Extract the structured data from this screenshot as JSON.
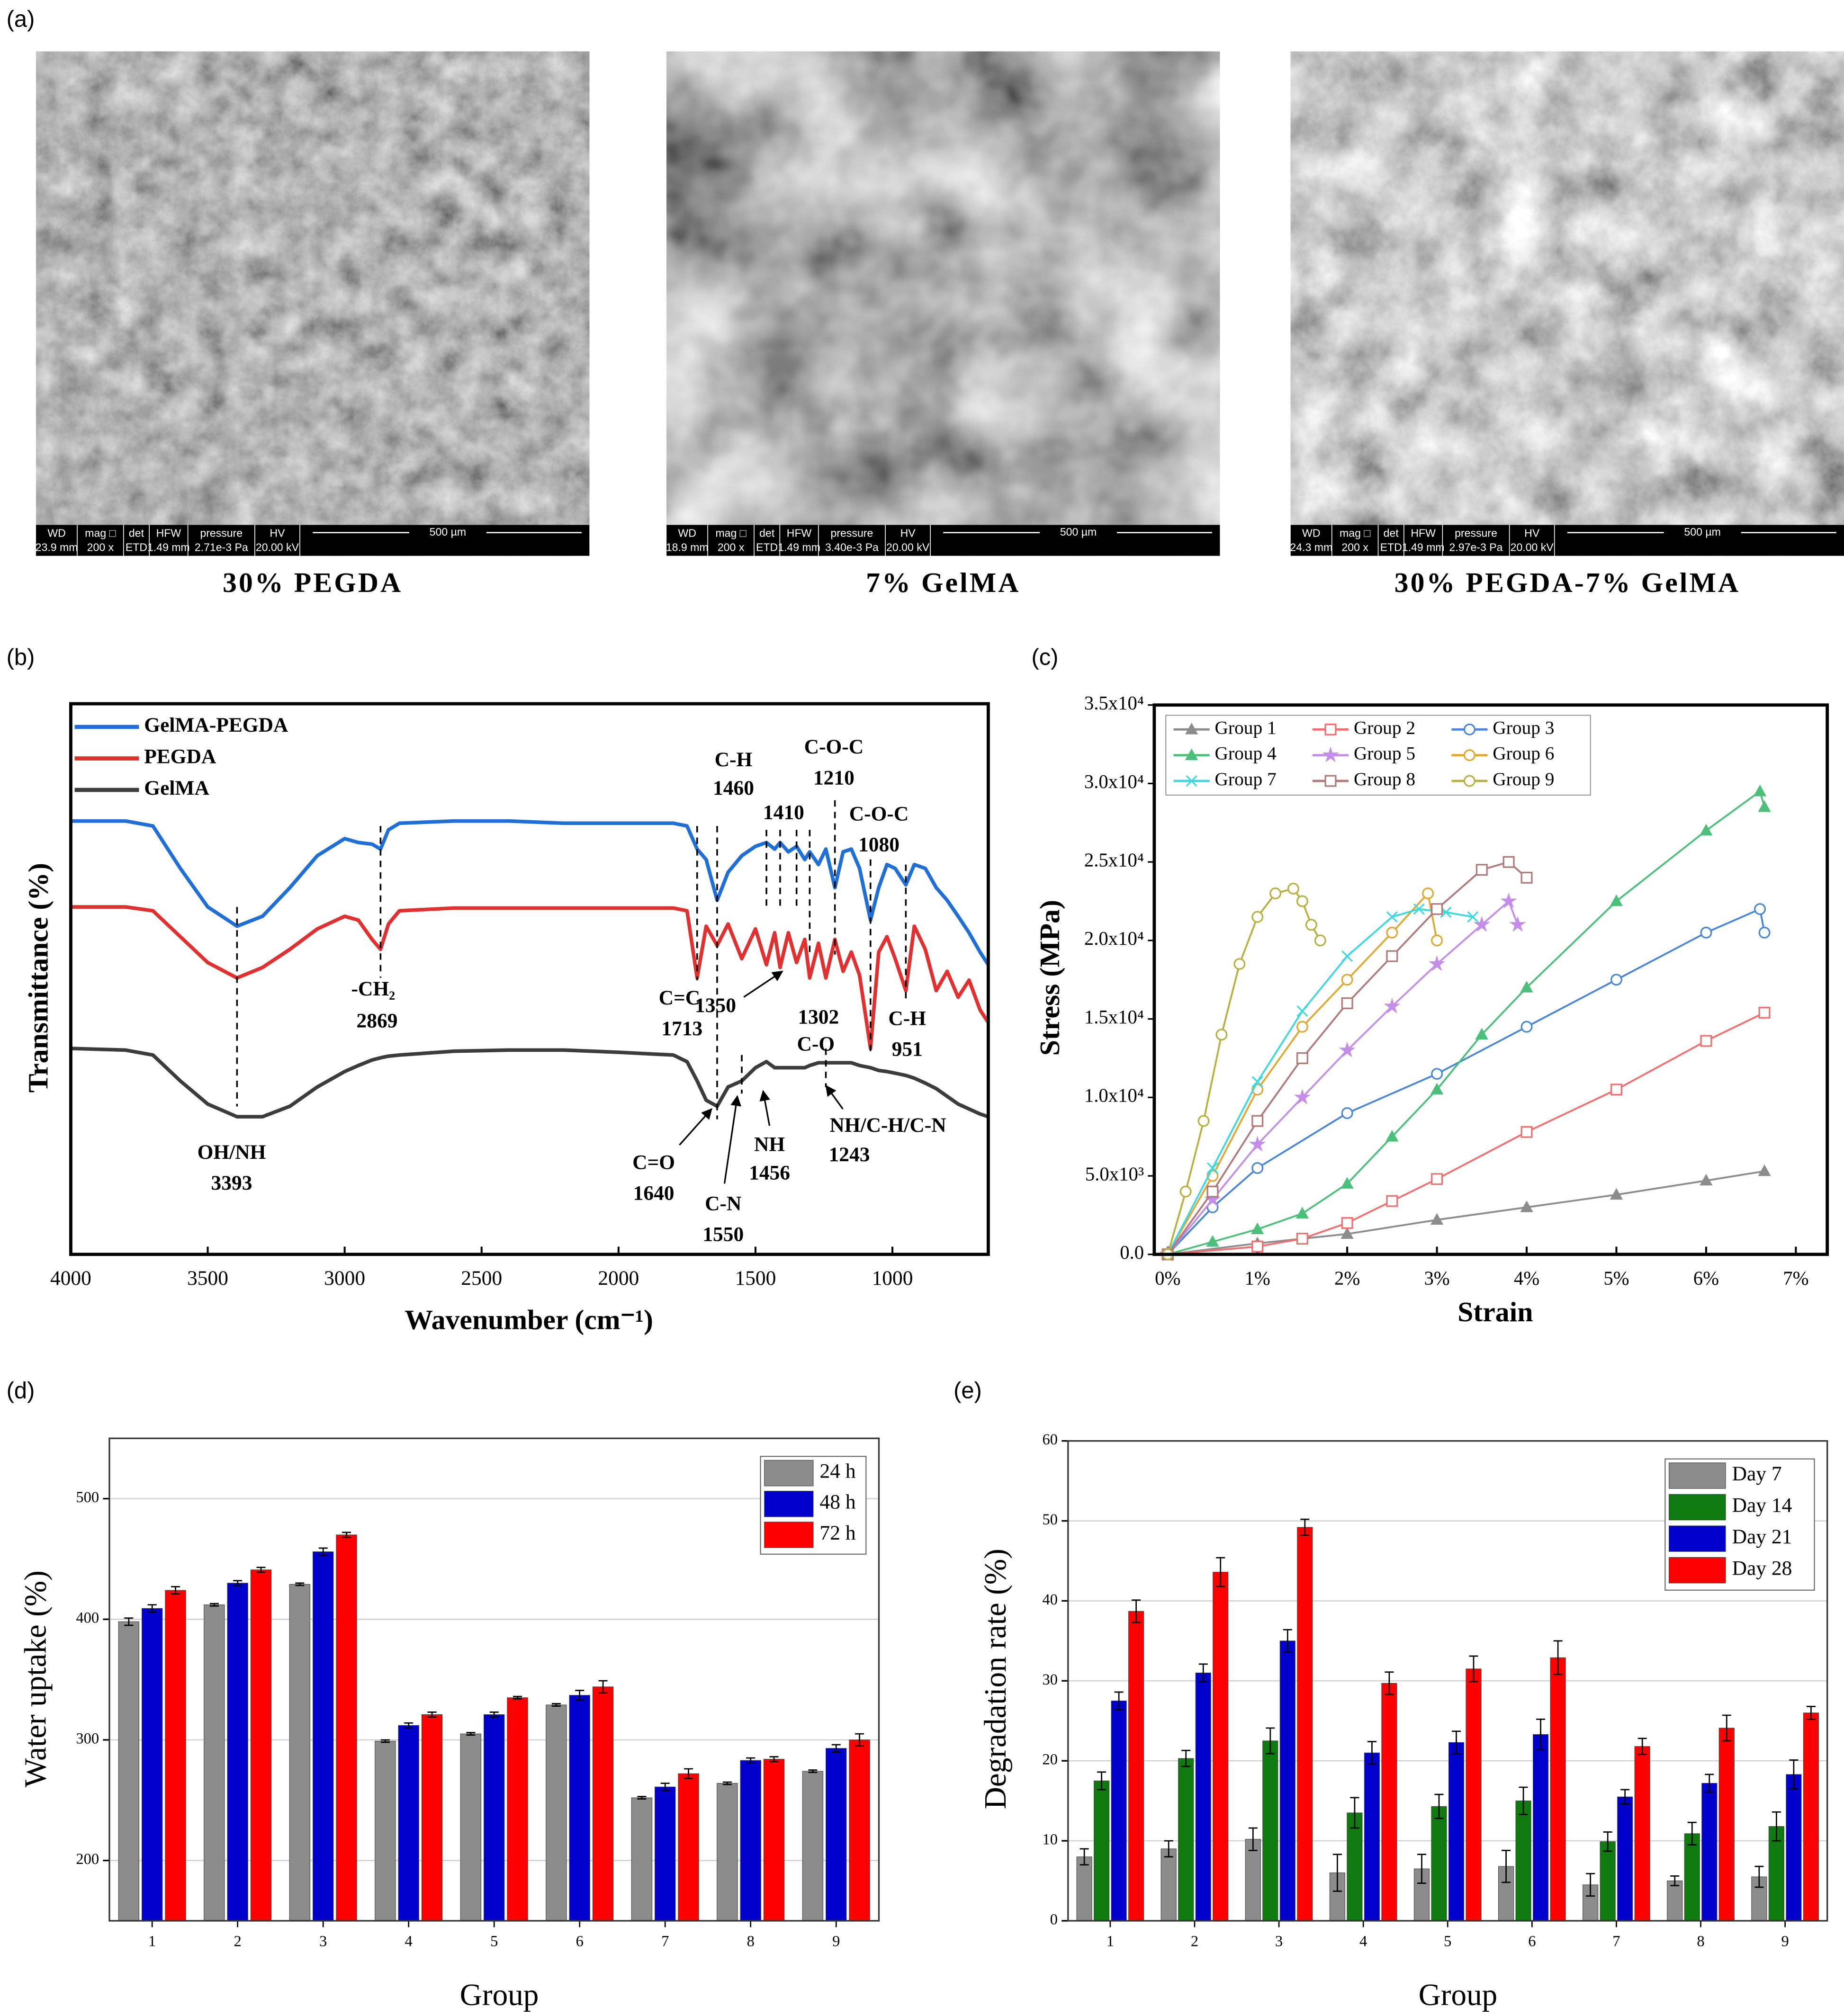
{
  "panel_labels": [
    "(a)",
    "(b)",
    "(c)",
    "(d)",
    "(e)"
  ],
  "sem_info_headers": [
    "WD",
    "mag □",
    "det",
    "HFW",
    "pressure",
    "HV"
  ],
  "sem_images": [
    {
      "caption": "30% PEGDA",
      "info_values": [
        "23.9 mm",
        "200 x",
        "ETD",
        "1.49 mm",
        "2.71e-3 Pa",
        "20.00 kV"
      ],
      "scale_bar": "500 µm"
    },
    {
      "caption": "7% GelMA",
      "info_values": [
        "18.9 mm",
        "200 x",
        "ETD",
        "1.49 mm",
        "3.40e-3 Pa",
        "20.00 kV"
      ],
      "scale_bar": "500 µm"
    },
    {
      "caption": "30% PEGDA-7% GelMA",
      "info_values": [
        "24.3 mm",
        "200 x",
        "ETD",
        "1.49 mm",
        "2.97e-3 Pa",
        "20.00 kV"
      ],
      "scale_bar": "500 µm"
    }
  ],
  "chart_data": [
    {
      "type": "line",
      "xlabel": "Wavenumber (cm⁻¹)",
      "ylabel": "Transmittance (%)",
      "xlim": [
        4000,
        650
      ],
      "xticks": [
        4000,
        3500,
        3000,
        2500,
        2000,
        1500,
        1000
      ],
      "ylim": [
        0,
        100
      ],
      "legend": "upper left",
      "x": [
        4000,
        3800,
        3700,
        3600,
        3500,
        3393,
        3300,
        3200,
        3100,
        3000,
        2950,
        2900,
        2869,
        2840,
        2800,
        2600,
        2400,
        2200,
        2000,
        1800,
        1750,
        1713,
        1680,
        1640,
        1600,
        1550,
        1500,
        1460,
        1430,
        1410,
        1380,
        1350,
        1320,
        1302,
        1270,
        1243,
        1210,
        1180,
        1150,
        1120,
        1080,
        1050,
        1020,
        990,
        951,
        920,
        880,
        840,
        800,
        760,
        720,
        680,
        650
      ],
      "series": [
        {
          "name": "GelMA-PEGDA",
          "color": "#1f6fd6",
          "values": [
            78.7,
            78.7,
            77.8,
            70.1,
            63.1,
            59.6,
            61.4,
            66.6,
            72.4,
            75.5,
            74.8,
            74.5,
            73.6,
            77.1,
            78.3,
            78.7,
            78.7,
            78.3,
            78.3,
            78.3,
            77.8,
            73.6,
            71.7,
            64.3,
            69.4,
            72.4,
            74.1,
            74.8,
            73.6,
            74.8,
            73.1,
            74.1,
            71.7,
            73.1,
            70.8,
            73.6,
            66.6,
            73.1,
            73.6,
            70.1,
            60.7,
            66.6,
            70.8,
            70.1,
            67.1,
            70.8,
            70.1,
            66.6,
            64.3,
            61.4,
            58.4,
            54.9,
            52.6
          ]
        },
        {
          "name": "PEGDA",
          "color": "#e03030",
          "values": [
            63.1,
            63.1,
            62.4,
            57.7,
            53.0,
            50.2,
            52.1,
            55.4,
            59.1,
            61.4,
            60.7,
            57.2,
            55.4,
            60.0,
            62.4,
            62.9,
            62.9,
            62.9,
            62.9,
            62.9,
            62.4,
            50.2,
            59.6,
            56.1,
            60.0,
            53.7,
            59.1,
            52.6,
            58.4,
            52.1,
            58.4,
            53.0,
            57.2,
            50.2,
            56.5,
            50.2,
            57.2,
            51.4,
            54.9,
            50.7,
            37.4,
            54.9,
            57.7,
            53.7,
            47.9,
            59.6,
            55.4,
            47.9,
            51.4,
            46.7,
            49.8,
            44.4,
            42.1
          ]
        },
        {
          "name": "GelMA",
          "color": "#3c3c3c",
          "values": [
            37.4,
            37.1,
            36.2,
            31.5,
            27.3,
            25.0,
            25.0,
            26.9,
            30.4,
            33.2,
            34.3,
            35.3,
            35.7,
            36.0,
            36.2,
            36.9,
            37.1,
            37.1,
            36.7,
            36.2,
            35.0,
            31.5,
            28.0,
            26.9,
            30.4,
            31.5,
            33.9,
            35.0,
            33.9,
            33.9,
            33.9,
            33.9,
            33.9,
            34.3,
            34.8,
            34.8,
            34.8,
            34.8,
            34.8,
            34.3,
            33.9,
            33.4,
            33.2,
            32.9,
            32.5,
            32.0,
            31.1,
            30.1,
            28.7,
            27.3,
            26.4,
            25.5,
            25.0
          ]
        }
      ],
      "annotations": [
        {
          "label": "OH/NH",
          "value": 3393
        },
        {
          "label": "-CH₂",
          "value": 2869
        },
        {
          "label": "C=C",
          "value": 1713
        },
        {
          "label": "C=O",
          "value": 1640
        },
        {
          "label": "C-N",
          "value": 1550
        },
        {
          "label": "NH",
          "value": 1456
        },
        {
          "label": "C-H",
          "value": 1460
        },
        {
          "value": 1410
        },
        {
          "value": 1350
        },
        {
          "label": "C-O",
          "value": 1302
        },
        {
          "label": "NH/C-H/C-N",
          "value": 1243
        },
        {
          "label": "C-O-C",
          "value": 1210
        },
        {
          "label": "C-O-C",
          "value": 1080
        },
        {
          "label": "C-H",
          "value": 951
        }
      ]
    },
    {
      "type": "line",
      "xlabel": "Strain",
      "ylabel": "Stress (MPa)",
      "xlim": [
        -0.15,
        7.35
      ],
      "xticks": [
        {
          "value": 0,
          "label": "0%"
        },
        {
          "value": 1,
          "label": "1%"
        },
        {
          "value": 2,
          "label": "2%"
        },
        {
          "value": 3,
          "label": "3%"
        },
        {
          "value": 4,
          "label": "4%"
        },
        {
          "value": 5,
          "label": "5%"
        },
        {
          "value": 6,
          "label": "6%"
        },
        {
          "value": 7,
          "label": "7%"
        }
      ],
      "ylim": [
        0,
        35000
      ],
      "yticks": [
        {
          "value": 0,
          "label": "0.0"
        },
        {
          "value": 5000,
          "label": "5.0x10³"
        },
        {
          "value": 10000,
          "label": "1.0x10⁴"
        },
        {
          "value": 15000,
          "label": "1.5x10⁴"
        },
        {
          "value": 20000,
          "label": "2.0x10⁴"
        },
        {
          "value": 25000,
          "label": "2.5x10⁴"
        },
        {
          "value": 30000,
          "label": "3.0x10⁴"
        },
        {
          "value": 35000,
          "label": "3.5x10⁴"
        }
      ],
      "legend": "upper left",
      "series": [
        {
          "name": "Group 1",
          "color": "#8c8c8c",
          "marker": "triangle",
          "x": [
            0,
            1,
            2,
            3,
            4,
            5,
            6,
            6.65
          ],
          "values": [
            0,
            700,
            1300,
            2200,
            3000,
            3800,
            4700,
            5300
          ]
        },
        {
          "name": "Group 2",
          "color": "#f07070",
          "marker": "square",
          "x": [
            0,
            1,
            1.5,
            2,
            2.5,
            3,
            4,
            5,
            6,
            6.65
          ],
          "values": [
            0,
            500,
            1000,
            2000,
            3400,
            4800,
            7800,
            10500,
            13600,
            15400
          ]
        },
        {
          "name": "Group 3",
          "color": "#4a86d8",
          "marker": "circle",
          "x": [
            0,
            0.5,
            1,
            2,
            3,
            4,
            5,
            6,
            6.6,
            6.65
          ],
          "values": [
            0,
            3000,
            5500,
            9000,
            11500,
            14500,
            17500,
            20500,
            22000,
            20500
          ]
        },
        {
          "name": "Group 4",
          "color": "#4cc07a",
          "marker": "triangle",
          "x": [
            0,
            0.5,
            1,
            1.5,
            2,
            2.5,
            3,
            3.5,
            4,
            5,
            6,
            6.6,
            6.65
          ],
          "values": [
            0,
            800,
            1600,
            2600,
            4500,
            7500,
            10500,
            14000,
            17000,
            22500,
            27000,
            29500,
            28500
          ]
        },
        {
          "name": "Group 5",
          "color": "#c38de8",
          "marker": "star",
          "x": [
            0,
            0.5,
            1,
            1.5,
            2,
            2.5,
            3,
            3.5,
            3.8,
            3.9
          ],
          "values": [
            0,
            3500,
            7000,
            10000,
            13000,
            15800,
            18500,
            21000,
            22500,
            21000
          ]
        },
        {
          "name": "Group 6",
          "color": "#e0a830",
          "marker": "circle",
          "x": [
            0,
            0.5,
            1,
            1.5,
            2,
            2.5,
            2.9,
            3.0
          ],
          "values": [
            0,
            5000,
            10500,
            14500,
            17500,
            20500,
            23000,
            20000
          ]
        },
        {
          "name": "Group 7",
          "color": "#40d8e0",
          "marker": "x",
          "x": [
            0,
            0.5,
            1,
            1.5,
            2,
            2.5,
            2.8,
            3.1,
            3.4
          ],
          "values": [
            0,
            5500,
            11000,
            15500,
            19000,
            21500,
            22000,
            21800,
            21500
          ]
        },
        {
          "name": "Group 8",
          "color": "#b07a7a",
          "marker": "square",
          "x": [
            0,
            0.5,
            1,
            1.5,
            2,
            2.5,
            3,
            3.5,
            3.8,
            4.0
          ],
          "values": [
            0,
            4000,
            8500,
            12500,
            16000,
            19000,
            22000,
            24500,
            25000,
            24000
          ]
        },
        {
          "name": "Group 9",
          "color": "#b8b040",
          "marker": "circle",
          "x": [
            0,
            0.2,
            0.4,
            0.6,
            0.8,
            1.0,
            1.2,
            1.4,
            1.5,
            1.6,
            1.7
          ],
          "values": [
            0,
            4000,
            8500,
            14000,
            18500,
            21500,
            23000,
            23300,
            22500,
            21000,
            20000
          ]
        }
      ]
    },
    {
      "type": "bar",
      "xlabel": "Group",
      "ylabel": "Water uptake (%)",
      "categories": [
        "1",
        "2",
        "3",
        "4",
        "5",
        "6",
        "7",
        "8",
        "9"
      ],
      "ylim": [
        150,
        550
      ],
      "yticks": [
        200,
        300,
        400,
        500
      ],
      "grid": true,
      "legend": "upper right",
      "series": [
        {
          "name": "24 h",
          "color": "#8c8c8c",
          "values": [
            398,
            412,
            429,
            299,
            305,
            329,
            252,
            264,
            274
          ],
          "errors": [
            3,
            1,
            1,
            1,
            1,
            1,
            1,
            1,
            1
          ]
        },
        {
          "name": "48 h",
          "color": "#0000cc",
          "values": [
            409,
            430,
            456,
            312,
            321,
            337,
            261,
            283,
            293
          ],
          "errors": [
            3,
            2,
            3,
            2,
            2,
            4,
            3,
            2,
            3
          ]
        },
        {
          "name": "72 h",
          "color": "#ff0000",
          "values": [
            424,
            441,
            470,
            321,
            335,
            344,
            272,
            284,
            300
          ],
          "errors": [
            3,
            2,
            2,
            2,
            1,
            5,
            4,
            2,
            5
          ]
        }
      ]
    },
    {
      "type": "bar",
      "xlabel": "Group",
      "ylabel": "Degradation rate (%)",
      "categories": [
        "1",
        "2",
        "3",
        "4",
        "5",
        "6",
        "7",
        "8",
        "9"
      ],
      "ylim": [
        0,
        60
      ],
      "yticks": [
        0,
        10,
        20,
        30,
        40,
        50,
        60
      ],
      "grid": true,
      "legend": "upper right",
      "series": [
        {
          "name": "Day 7",
          "color": "#8c8c8c",
          "values": [
            8,
            9,
            10.2,
            6,
            6.5,
            6.8,
            4.5,
            5,
            5.5
          ],
          "errors": [
            1,
            1,
            1.4,
            2.3,
            1.8,
            2,
            1.4,
            0.6,
            1.3
          ]
        },
        {
          "name": "Day 14",
          "color": "#0f7a0f",
          "values": [
            17.5,
            20.3,
            22.5,
            13.5,
            14.3,
            15,
            9.9,
            10.9,
            11.8
          ],
          "errors": [
            1.1,
            1,
            1.6,
            1.9,
            1.5,
            1.7,
            1.2,
            1.4,
            1.8
          ]
        },
        {
          "name": "Day 21",
          "color": "#0000cc",
          "values": [
            27.5,
            31,
            35,
            21,
            22.3,
            23.3,
            15.5,
            17.2,
            18.3
          ],
          "errors": [
            1.1,
            1.1,
            1.4,
            1.4,
            1.4,
            1.9,
            0.9,
            1.1,
            1.8
          ]
        },
        {
          "name": "Day 28",
          "color": "#ff0000",
          "values": [
            38.7,
            43.6,
            49.2,
            29.7,
            31.5,
            32.9,
            21.8,
            24.1,
            26
          ],
          "errors": [
            1.4,
            1.8,
            1,
            1.4,
            1.6,
            2.1,
            1,
            1.6,
            0.8
          ]
        }
      ]
    }
  ]
}
